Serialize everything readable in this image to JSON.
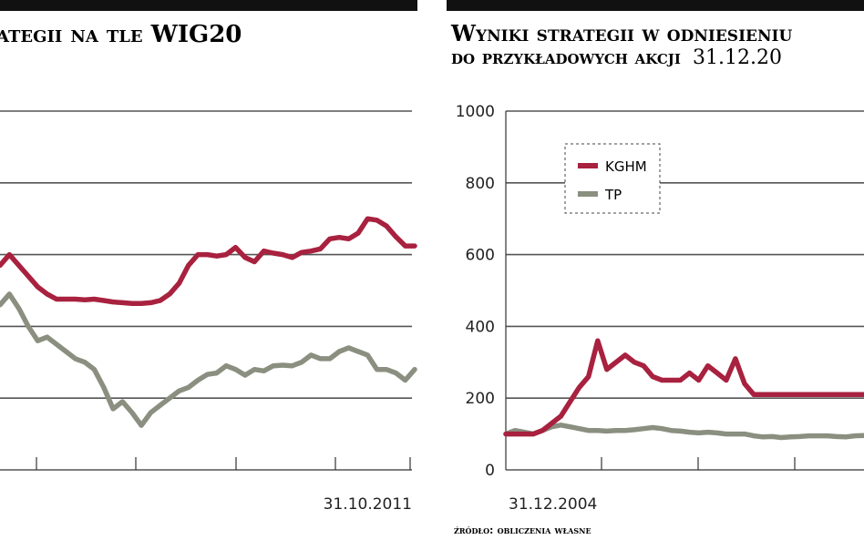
{
  "left_panel": {
    "title": "ategii na tle WIG20",
    "end_date_label": "31.10.2011"
  },
  "right_panel": {
    "title_line1": "Wyniki strategii w odniesieniu",
    "title_line2_caps": "do przykładowych akcji",
    "title_line2_date": "31.12.20",
    "start_date_label": "31.12.2004",
    "source": "źródło: obliczenia własne"
  },
  "colors": {
    "kghm": "#a8213f",
    "tp": "#8a8f80",
    "grid": "#555555",
    "band": "#111111"
  },
  "chart_data": [
    {
      "type": "line",
      "title": "ategii na tle WIG20",
      "x_end_label": "31.10.2011",
      "grid": true,
      "series": [
        {
          "color_key": "kghm",
          "values": [
            285,
            300,
            285,
            270,
            255,
            245,
            238,
            238,
            238,
            237,
            238,
            236,
            234,
            233,
            232,
            232,
            233,
            236,
            245,
            260,
            285,
            300,
            300,
            298,
            300,
            310,
            296,
            290,
            305,
            302,
            300,
            296,
            303,
            305,
            308,
            322,
            324,
            322,
            330,
            350,
            348,
            340,
            325,
            312,
            312
          ]
        },
        {
          "color_key": "tp",
          "values": [
            230,
            245,
            225,
            200,
            180,
            185,
            175,
            165,
            155,
            150,
            140,
            115,
            85,
            95,
            80,
            62,
            80,
            90,
            100,
            110,
            115,
            125,
            133,
            135,
            145,
            140,
            132,
            140,
            138,
            145,
            146,
            145,
            150,
            160,
            155,
            155,
            165,
            170,
            165,
            160,
            140,
            140,
            135,
            125,
            140
          ]
        }
      ]
    },
    {
      "type": "line",
      "title": "Wyniki strategii w odniesieniu do przykładowych akcji",
      "y_ticks": [
        0,
        200,
        400,
        600,
        800,
        1000
      ],
      "ylim": [
        0,
        1000
      ],
      "x_start_label": "31.12.2004",
      "grid": true,
      "legend_placement": "top-left",
      "series": [
        {
          "name": "KGHM",
          "color_key": "kghm",
          "values": [
            100,
            100,
            100,
            100,
            110,
            130,
            150,
            190,
            230,
            260,
            360,
            280,
            300,
            320,
            300,
            290,
            260,
            250,
            250,
            250,
            270,
            250,
            290,
            270,
            250,
            310,
            240,
            210,
            210,
            210,
            210,
            210,
            210,
            210,
            210,
            210,
            210,
            210,
            210,
            210
          ]
        },
        {
          "name": "TP",
          "color_key": "tp",
          "values": [
            100,
            110,
            105,
            100,
            110,
            120,
            125,
            120,
            115,
            110,
            110,
            108,
            110,
            110,
            112,
            115,
            118,
            115,
            110,
            108,
            105,
            103,
            105,
            103,
            100,
            100,
            100,
            95,
            92,
            93,
            90,
            92,
            93,
            95,
            95,
            95,
            93,
            92,
            95,
            96
          ]
        }
      ]
    }
  ]
}
